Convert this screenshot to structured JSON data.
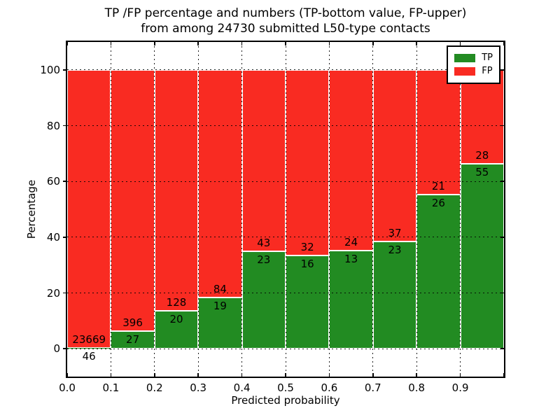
{
  "figure": {
    "title_line1": "TP /FP percentage and numbers (TP-bottom value, FP-upper)",
    "title_line2": "from among 24730 submitted L50-type contacts"
  },
  "chart_data": {
    "type": "bar",
    "stacked": true,
    "title": "TP /FP percentage and numbers (TP-bottom value, FP-upper)\nfrom among 24730 submitted L50-type contacts",
    "total_submitted": 24730,
    "xlabel": "Predicted probability",
    "ylabel": "Percentage",
    "xlim": [
      0.0,
      1.0
    ],
    "ylim": [
      -10,
      110
    ],
    "bin_width": 0.1,
    "bin_starts": [
      0.0,
      0.1,
      0.2,
      0.3,
      0.4,
      0.5,
      0.6,
      0.7,
      0.8,
      0.9
    ],
    "x_tick_values": [
      0.0,
      0.1,
      0.2,
      0.3,
      0.4,
      0.5,
      0.6,
      0.7,
      0.8,
      0.9,
      1.0
    ],
    "x_tick_labels": [
      "0.0",
      "0.1",
      "0.2",
      "0.3",
      "0.4",
      "0.5",
      "0.6",
      "0.7",
      "0.8",
      "0.9",
      ""
    ],
    "y_tick_values": [
      0,
      20,
      40,
      60,
      80,
      100
    ],
    "y_tick_labels": [
      "0",
      "20",
      "40",
      "60",
      "80",
      "100"
    ],
    "grid": "dotted",
    "legend_position": "upper right",
    "series": [
      {
        "name": "TP",
        "color": "#228b22",
        "counts": [
          46,
          27,
          20,
          19,
          23,
          16,
          13,
          23,
          26,
          55
        ],
        "percent": [
          0.19,
          6.38,
          13.51,
          18.45,
          34.85,
          33.33,
          35.14,
          38.33,
          55.32,
          66.27
        ]
      },
      {
        "name": "FP",
        "color": "#f92b22",
        "counts": [
          23669,
          396,
          128,
          84,
          43,
          32,
          24,
          37,
          21,
          28
        ],
        "percent": [
          99.81,
          93.62,
          86.49,
          81.55,
          65.15,
          66.67,
          64.86,
          61.67,
          44.68,
          33.73
        ]
      }
    ],
    "legend": {
      "entries": [
        {
          "label": "TP",
          "color": "#228b22"
        },
        {
          "label": "FP",
          "color": "#f92b22"
        }
      ]
    }
  }
}
